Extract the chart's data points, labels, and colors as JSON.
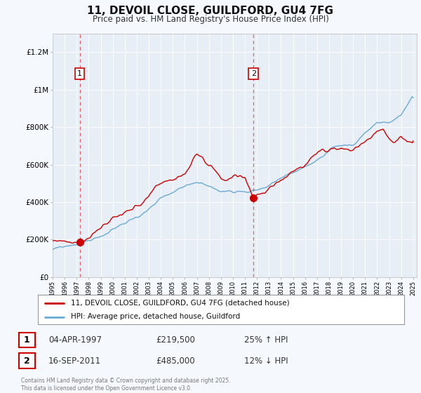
{
  "title": "11, DEVOIL CLOSE, GUILDFORD, GU4 7FG",
  "subtitle": "Price paid vs. HM Land Registry's House Price Index (HPI)",
  "background_color": "#f5f8fc",
  "plot_bg_color": "#e8eef6",
  "ylim": [
    0,
    1300000
  ],
  "yticks": [
    0,
    200000,
    400000,
    600000,
    800000,
    1000000,
    1200000
  ],
  "ytick_labels": [
    "£0",
    "£200K",
    "£400K",
    "£600K",
    "£800K",
    "£1M",
    "£1.2M"
  ],
  "xstart_year": 1995,
  "xend_year": 2025,
  "legend_line1": "11, DEVOIL CLOSE, GUILDFORD, GU4 7FG (detached house)",
  "legend_line2": "HPI: Average price, detached house, Guildford",
  "line1_color": "#cc0000",
  "line2_color": "#6aaad4",
  "vline_color": "#e05555",
  "annotation1_num": "1",
  "annotation1_date": "04-APR-1997",
  "annotation1_price": "£219,500",
  "annotation1_hpi": "25% ↑ HPI",
  "annotation2_num": "2",
  "annotation2_date": "16-SEP-2011",
  "annotation2_price": "£485,000",
  "annotation2_hpi": "12% ↓ HPI",
  "footer": "Contains HM Land Registry data © Crown copyright and database right 2025.\nThis data is licensed under the Open Government Licence v3.0.",
  "sale1_year": 1997.25,
  "sale1_price": 219500,
  "sale2_year": 2011.71,
  "sale2_price": 485000,
  "num_box_color": "#cc0000",
  "num_text_color": "#000000",
  "grid_color": "#d0d8e4",
  "white_grid_color": "#ffffff"
}
